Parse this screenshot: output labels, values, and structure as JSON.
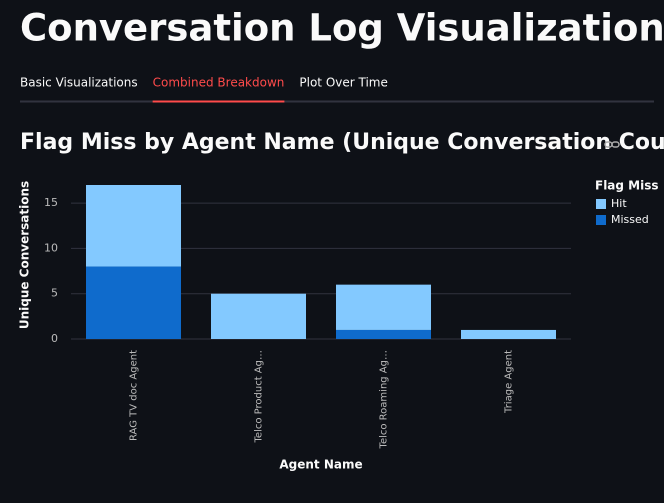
{
  "header": {
    "title": "Conversation Log Visualizations"
  },
  "tabs": [
    "Basic Visualizations",
    "Combined Breakdown",
    "Plot Over Time"
  ],
  "active_tab": 1,
  "chart_data": {
    "type": "stacked-bar",
    "title": "Flag Miss by Agent Name (Unique Conversation Count)",
    "x_label": "Agent Name",
    "y_label": "Unique Conversations",
    "categories": [
      "RAG TV doc Agent",
      "Telco Product Ag…",
      "Telco Roaming Ag…",
      "Triage Agent"
    ],
    "legend_title": "Flag Miss",
    "series": [
      {
        "name": "Hit",
        "color": "#83c9ff",
        "values": [
          9,
          5,
          5,
          1
        ]
      },
      {
        "name": "Missed",
        "color": "#0f6bcc",
        "values": [
          8,
          0,
          1,
          0
        ]
      }
    ],
    "ylim": [
      0,
      17
    ],
    "yticks": [
      0,
      5,
      10,
      15
    ],
    "grid": true,
    "legend": "right"
  }
}
